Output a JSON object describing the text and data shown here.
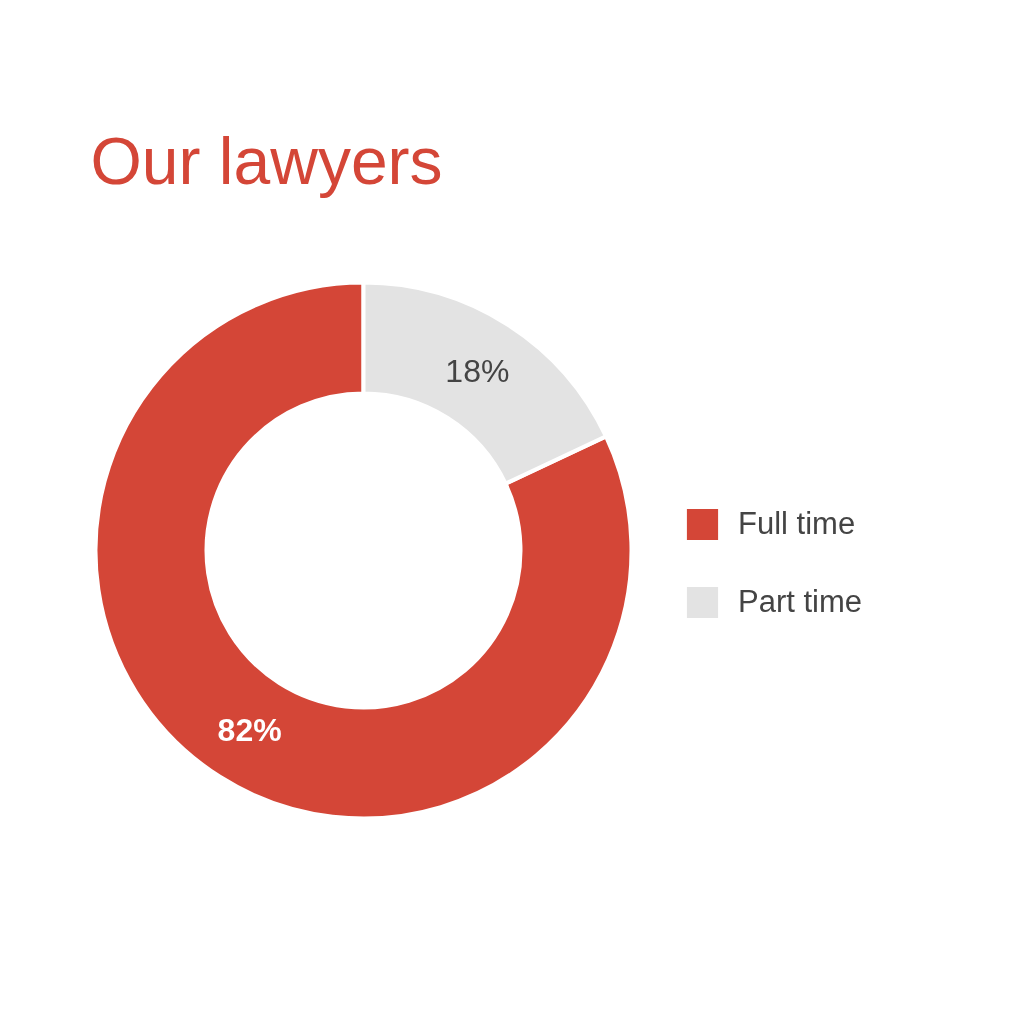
{
  "chart_data": {
    "type": "donut",
    "title": "Our lawyers",
    "categories": [
      "Full time",
      "Part time"
    ],
    "values": [
      82,
      18
    ],
    "colors": [
      "#d44637",
      "#e3e3e3"
    ],
    "value_labels": [
      "82%",
      "18%"
    ],
    "legend": "right"
  }
}
